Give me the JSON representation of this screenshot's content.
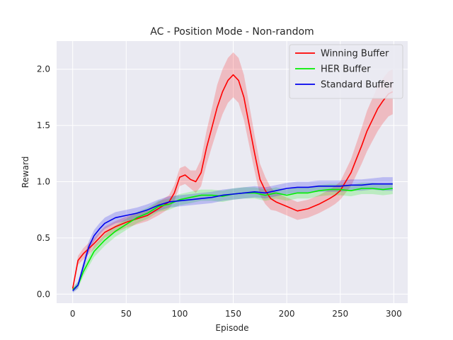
{
  "colors": {
    "background": "#ffffff",
    "plot_area": "#eaeaf2",
    "grid": "#ffffff"
  },
  "chart_data": {
    "type": "line",
    "title": "AC - Position Mode - Non-random",
    "xlabel": "Episode",
    "ylabel": "Reward",
    "xlim": [
      -15,
      313
    ],
    "ylim": [
      -0.08,
      2.25
    ],
    "xticks": [
      0,
      50,
      100,
      150,
      200,
      250,
      300
    ],
    "yticks": [
      0.0,
      0.5,
      1.0,
      1.5,
      2.0
    ],
    "ytick_labels": [
      "0.0",
      "0.5",
      "1.0",
      "1.5",
      "2.0"
    ],
    "grid": true,
    "legend": "top-right",
    "shaded_band": "mean ± spread",
    "series": [
      {
        "name": "Winning Buffer",
        "color": "#ff0000",
        "x": [
          0,
          5,
          10,
          20,
          30,
          40,
          50,
          60,
          70,
          80,
          90,
          95,
          100,
          105,
          110,
          115,
          120,
          125,
          130,
          135,
          140,
          145,
          150,
          155,
          160,
          165,
          170,
          175,
          180,
          185,
          190,
          200,
          210,
          220,
          230,
          240,
          245,
          250,
          255,
          260,
          265,
          270,
          275,
          280,
          285,
          290,
          295,
          299
        ],
        "y": [
          0.05,
          0.3,
          0.36,
          0.45,
          0.55,
          0.6,
          0.64,
          0.67,
          0.7,
          0.76,
          0.82,
          0.9,
          1.04,
          1.06,
          1.02,
          1.0,
          1.08,
          1.3,
          1.48,
          1.66,
          1.8,
          1.9,
          1.95,
          1.9,
          1.75,
          1.5,
          1.25,
          1.02,
          0.92,
          0.85,
          0.82,
          0.78,
          0.74,
          0.76,
          0.8,
          0.85,
          0.88,
          0.92,
          1.0,
          1.08,
          1.2,
          1.32,
          1.45,
          1.55,
          1.65,
          1.72,
          1.78,
          1.8
        ],
        "spread": [
          0.02,
          0.04,
          0.05,
          0.05,
          0.05,
          0.05,
          0.05,
          0.05,
          0.05,
          0.06,
          0.06,
          0.07,
          0.08,
          0.08,
          0.08,
          0.1,
          0.12,
          0.15,
          0.17,
          0.2,
          0.2,
          0.2,
          0.2,
          0.2,
          0.2,
          0.18,
          0.16,
          0.14,
          0.12,
          0.1,
          0.08,
          0.08,
          0.08,
          0.08,
          0.08,
          0.08,
          0.08,
          0.08,
          0.1,
          0.12,
          0.14,
          0.16,
          0.18,
          0.19,
          0.2,
          0.2,
          0.2,
          0.2
        ]
      },
      {
        "name": "HER Buffer",
        "color": "#00ee00",
        "x": [
          0,
          5,
          10,
          20,
          30,
          40,
          50,
          60,
          70,
          80,
          90,
          100,
          110,
          120,
          130,
          140,
          150,
          160,
          170,
          180,
          190,
          200,
          210,
          220,
          230,
          240,
          250,
          260,
          270,
          280,
          290,
          299
        ],
        "y": [
          0.04,
          0.08,
          0.2,
          0.38,
          0.48,
          0.56,
          0.62,
          0.68,
          0.72,
          0.78,
          0.8,
          0.84,
          0.86,
          0.88,
          0.88,
          0.87,
          0.89,
          0.9,
          0.9,
          0.88,
          0.9,
          0.88,
          0.9,
          0.9,
          0.92,
          0.93,
          0.93,
          0.92,
          0.94,
          0.94,
          0.93,
          0.94
        ],
        "spread": [
          0.02,
          0.03,
          0.04,
          0.05,
          0.05,
          0.05,
          0.05,
          0.05,
          0.05,
          0.05,
          0.05,
          0.05,
          0.05,
          0.05,
          0.05,
          0.05,
          0.05,
          0.05,
          0.05,
          0.05,
          0.05,
          0.05,
          0.05,
          0.05,
          0.05,
          0.05,
          0.05,
          0.05,
          0.05,
          0.05,
          0.05,
          0.05
        ]
      },
      {
        "name": "Standard Buffer",
        "color": "#0000ee",
        "x": [
          0,
          5,
          10,
          15,
          20,
          25,
          30,
          40,
          50,
          60,
          70,
          80,
          90,
          100,
          110,
          120,
          130,
          140,
          150,
          160,
          170,
          180,
          190,
          200,
          210,
          220,
          230,
          240,
          250,
          260,
          270,
          280,
          290,
          299
        ],
        "y": [
          0.03,
          0.08,
          0.25,
          0.42,
          0.52,
          0.58,
          0.63,
          0.68,
          0.7,
          0.72,
          0.75,
          0.79,
          0.82,
          0.83,
          0.84,
          0.85,
          0.86,
          0.88,
          0.89,
          0.9,
          0.91,
          0.9,
          0.92,
          0.94,
          0.95,
          0.95,
          0.96,
          0.96,
          0.96,
          0.97,
          0.97,
          0.98,
          0.98,
          0.98
        ],
        "spread": [
          0.02,
          0.03,
          0.04,
          0.05,
          0.05,
          0.05,
          0.05,
          0.05,
          0.05,
          0.05,
          0.05,
          0.05,
          0.05,
          0.05,
          0.05,
          0.05,
          0.05,
          0.05,
          0.05,
          0.05,
          0.05,
          0.05,
          0.05,
          0.05,
          0.05,
          0.05,
          0.05,
          0.05,
          0.05,
          0.05,
          0.05,
          0.05,
          0.06,
          0.06
        ]
      }
    ]
  }
}
